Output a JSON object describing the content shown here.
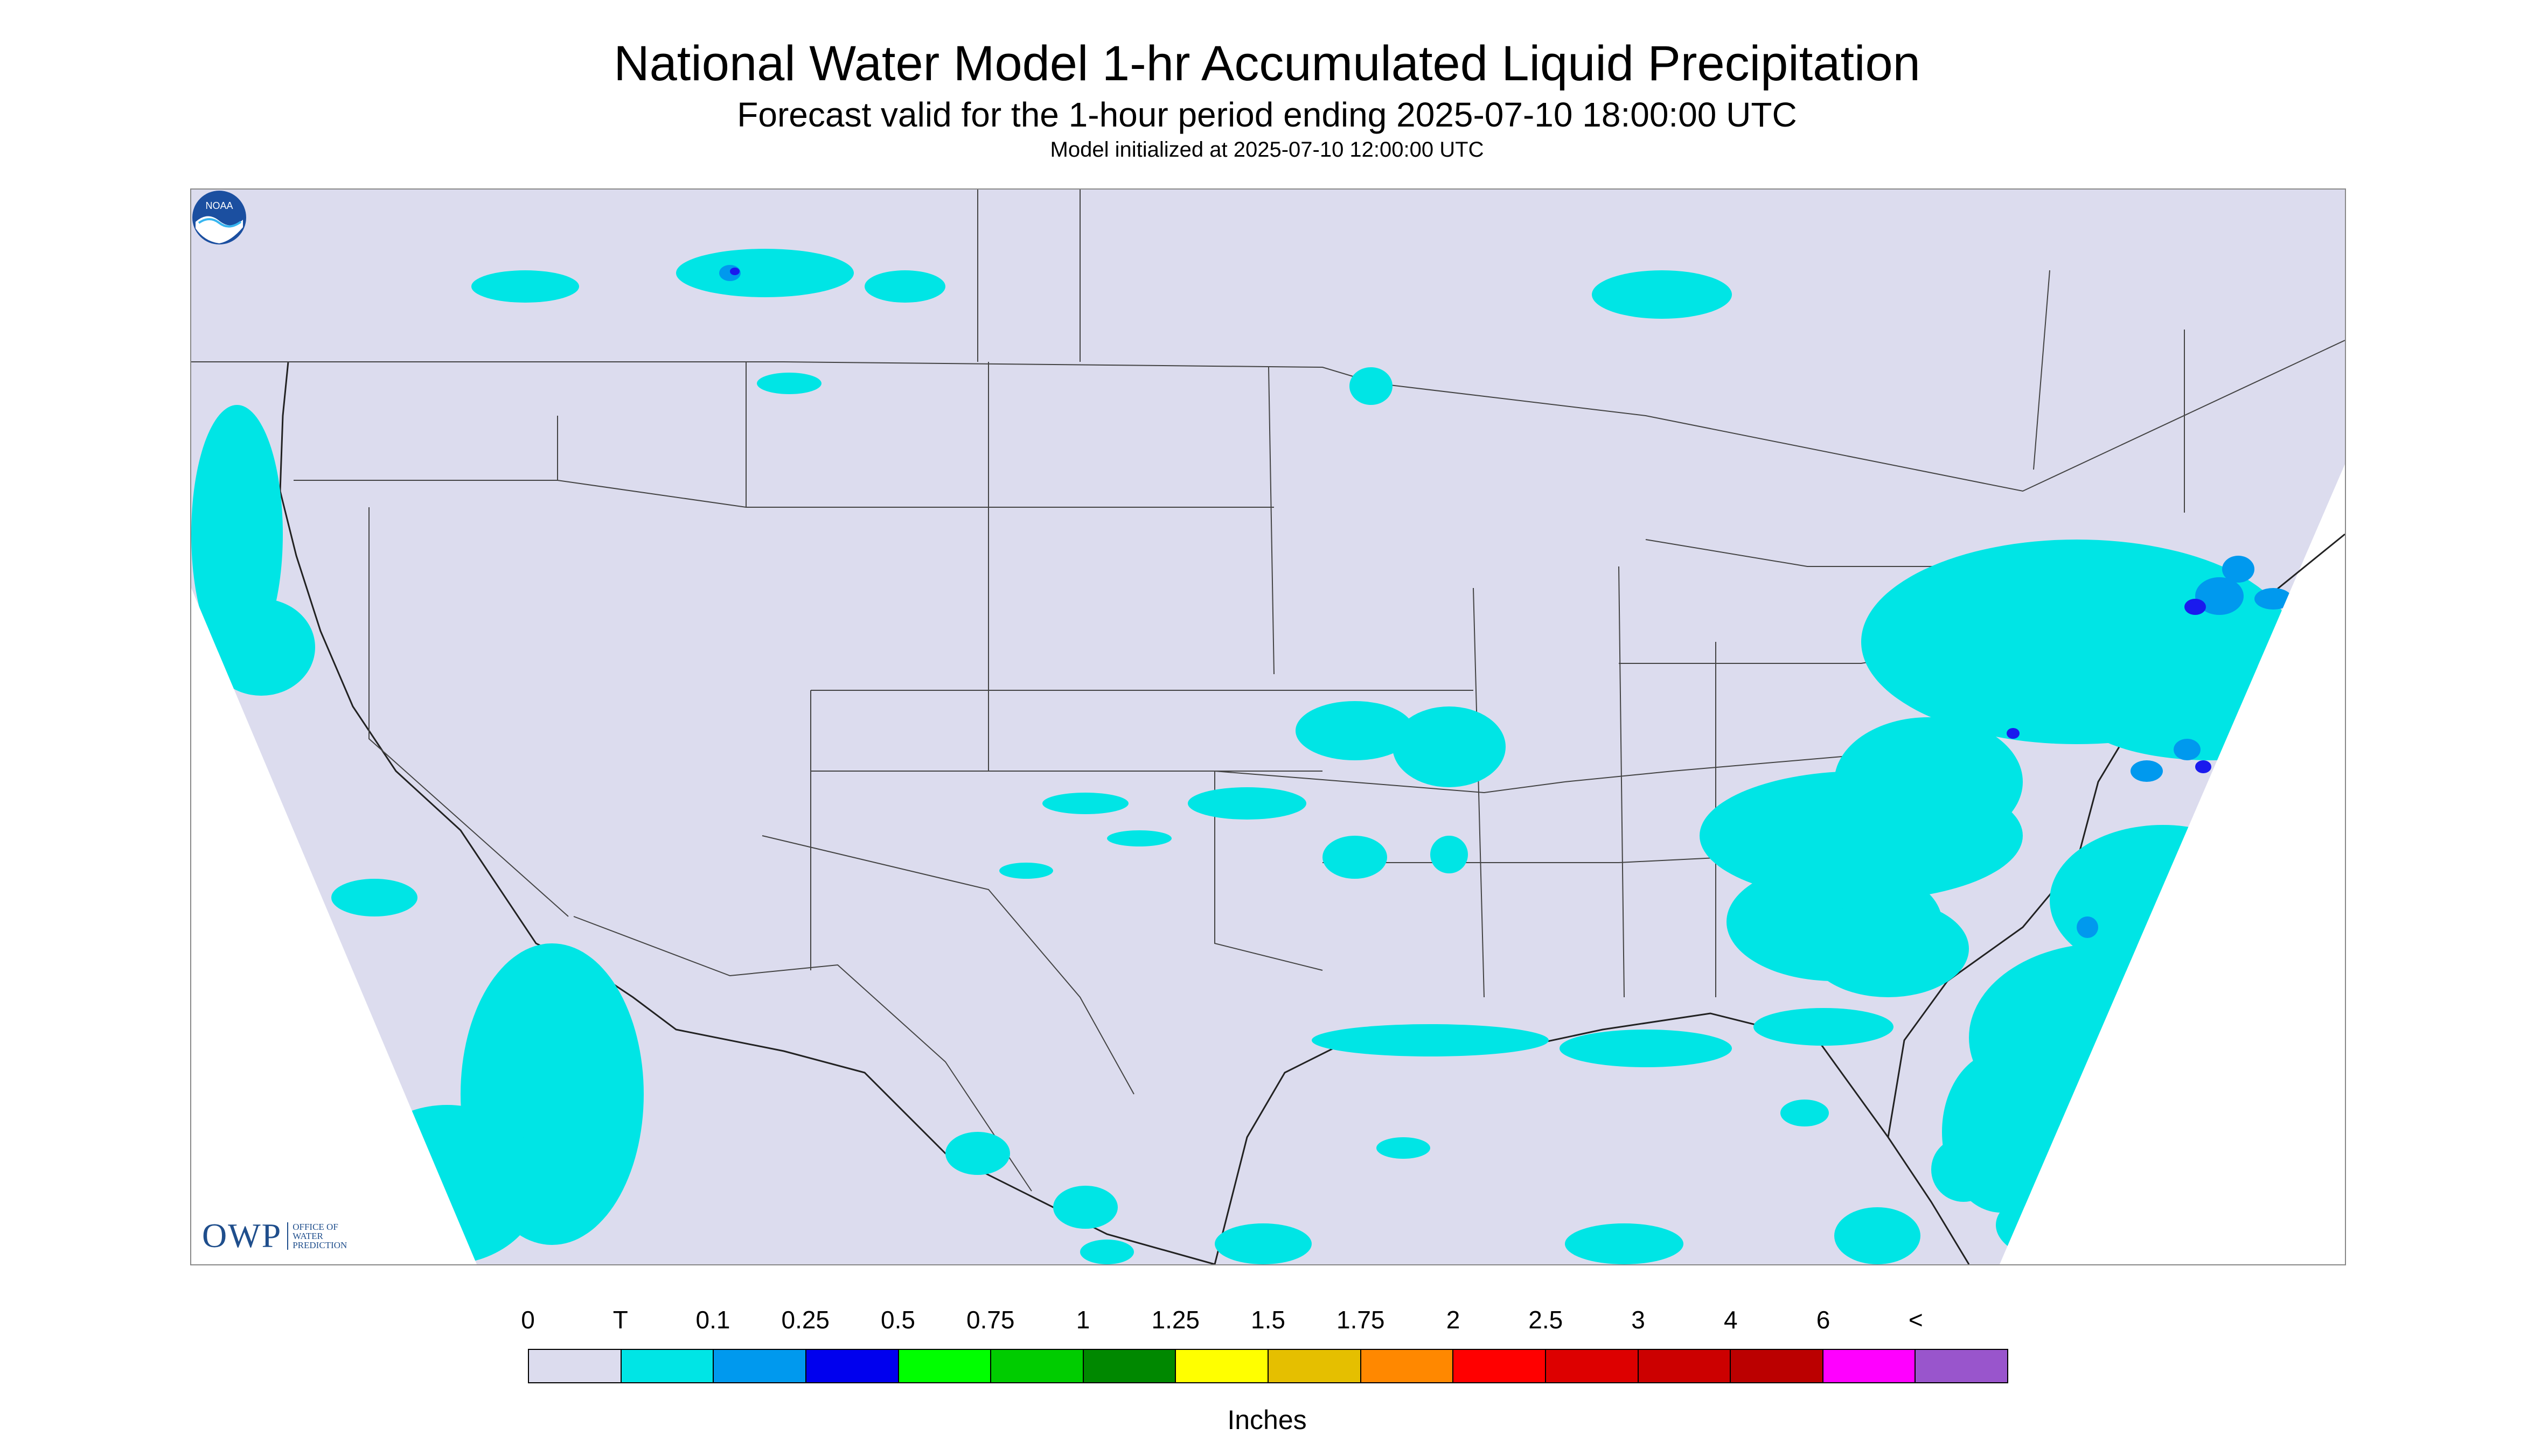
{
  "header": {
    "title": "National Water Model 1-hr Accumulated Liquid Precipitation",
    "subtitle": "Forecast valid for the 1-hour period ending 2025-07-10 18:00:00 UTC",
    "init": "Model initialized at 2025-07-10 12:00:00 UTC"
  },
  "map": {
    "background_color": "#dcdcee",
    "outside_color": "#ffffff",
    "trace_color": "#00e5e5",
    "light_color": "#0099ee",
    "moderate_color": "#1a1aee"
  },
  "logos": {
    "owp_mark": "OWP",
    "owp_line1": "OFFICE OF",
    "owp_line2": "WATER",
    "owp_line3": "PREDICTION",
    "noaa": "NOAA"
  },
  "legend": {
    "units": "Inches",
    "labels": [
      "0",
      "T",
      "0.1",
      "0.25",
      "0.5",
      "0.75",
      "1",
      "1.25",
      "1.5",
      "1.75",
      "2",
      "2.5",
      "3",
      "4",
      "6",
      "<"
    ],
    "colors": [
      "#dcdcee",
      "#00e5e5",
      "#0099ee",
      "#0000ee",
      "#00ff00",
      "#00cc00",
      "#008800",
      "#ffff00",
      "#e5bf00",
      "#ff8800",
      "#ff0000",
      "#dd0000",
      "#cc0000",
      "#bb0000",
      "#ff00ff",
      "#9955cc"
    ]
  }
}
